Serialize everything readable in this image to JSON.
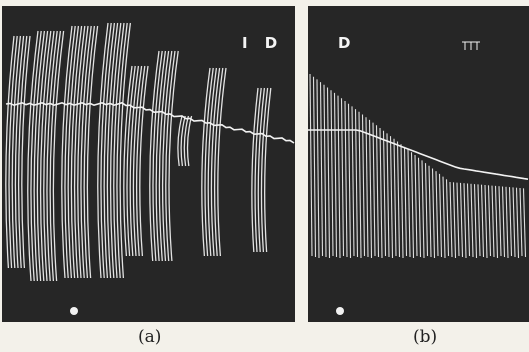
{
  "figure": {
    "panel_a": {
      "marker_label": "I D",
      "caption": "(a)"
    },
    "panel_b": {
      "marker_label": "D",
      "caption": "(b)"
    },
    "colors": {
      "trace": "#f2f2f2",
      "background": "#262626",
      "page": "#f3f1ea"
    }
  }
}
